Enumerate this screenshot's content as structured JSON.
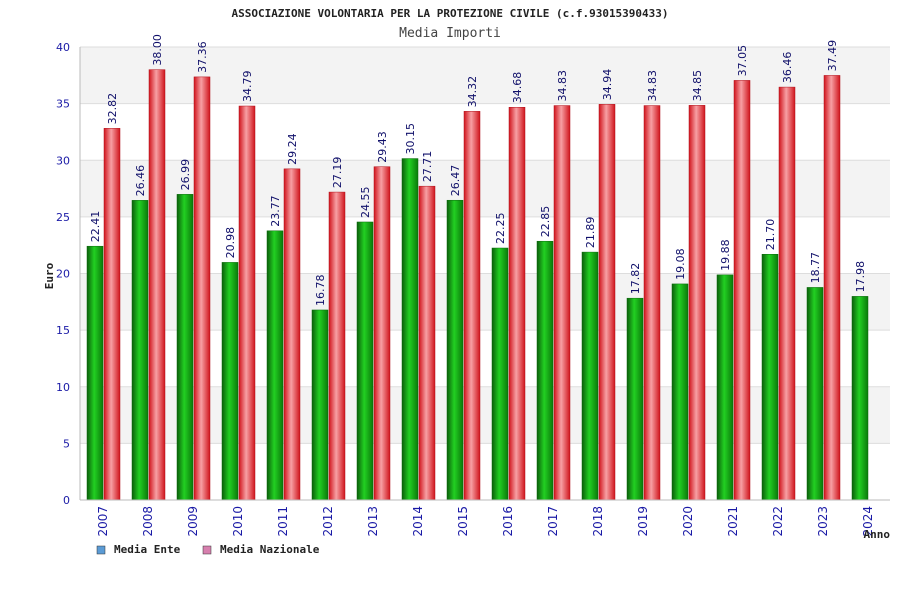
{
  "chart_data": {
    "type": "bar",
    "title": "ASSOCIAZIONE VOLONTARIA PER LA PROTEZIONE CIVILE (c.f.93015390433)",
    "subtitle": "Media Importi",
    "xlabel": "Anno",
    "ylabel": "Euro",
    "ylim": [
      0,
      40
    ],
    "yticks": [
      0,
      5,
      10,
      15,
      20,
      25,
      30,
      35,
      40
    ],
    "grid": true,
    "legend_position": "bottom-left",
    "categories": [
      "2007",
      "2008",
      "2009",
      "2010",
      "2011",
      "2012",
      "2013",
      "2014",
      "2015",
      "2016",
      "2017",
      "2018",
      "2019",
      "2020",
      "2021",
      "2022",
      "2023",
      "2024"
    ],
    "series": [
      {
        "name": "Media Ente",
        "color": "#0a9e0a",
        "legend_color": "#5b9bd5",
        "values": [
          22.41,
          26.46,
          26.99,
          20.98,
          23.77,
          16.78,
          24.55,
          30.15,
          26.47,
          22.25,
          22.85,
          21.89,
          17.82,
          19.08,
          19.88,
          21.7,
          18.77,
          17.98
        ],
        "labels": [
          "22.41",
          "26.46",
          "26.99",
          "20.98",
          "23.77",
          "16.78",
          "24.55",
          "30.15",
          "26.47",
          "22.25",
          "22.85",
          "21.89",
          "17.82",
          "19.08",
          "19.88",
          "21.70",
          "18.77",
          "17.98"
        ]
      },
      {
        "name": "Media Nazionale",
        "color": "#e8202a",
        "legend_color": "#d77fae",
        "values": [
          32.82,
          38.0,
          37.36,
          34.79,
          29.24,
          27.19,
          29.43,
          27.71,
          34.32,
          34.68,
          34.83,
          34.94,
          34.83,
          34.85,
          37.05,
          36.46,
          37.49,
          null
        ],
        "labels": [
          "32.82",
          "38.00",
          "37.36",
          "34.79",
          "29.24",
          "27.19",
          "29.43",
          "27.71",
          "34.32",
          "34.68",
          "34.83",
          "34.94",
          "34.83",
          "34.85",
          "37.05",
          "36.46",
          "37.49",
          null
        ]
      }
    ]
  }
}
